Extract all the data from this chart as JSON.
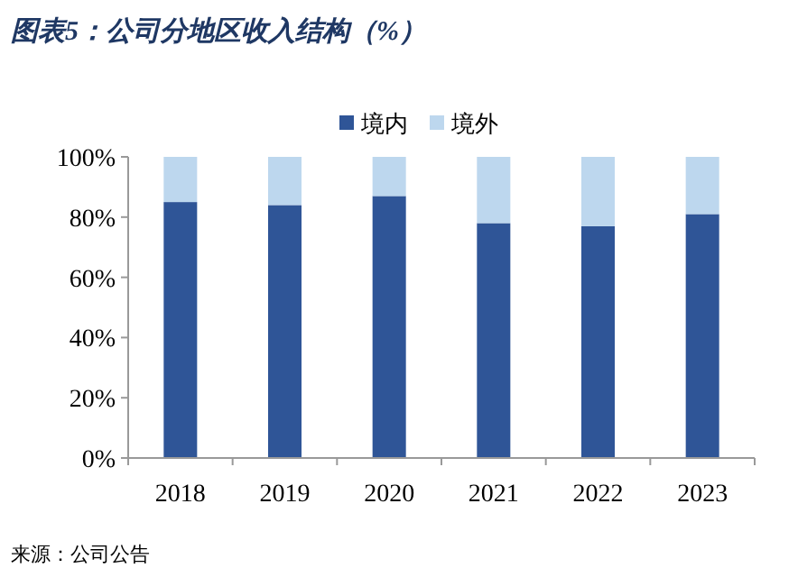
{
  "chart_data": {
    "type": "bar",
    "title": "图表5：公司分地区收入结构（%）",
    "categories": [
      "2018",
      "2019",
      "2020",
      "2021",
      "2022",
      "2023"
    ],
    "stacked": true,
    "series": [
      {
        "name": "境内",
        "color": "#2f5597",
        "values": [
          85,
          84,
          87,
          78,
          77,
          81
        ]
      },
      {
        "name": "境外",
        "color": "#bdd7ee",
        "values": [
          15,
          16,
          13,
          22,
          23,
          19
        ]
      }
    ],
    "ylim": [
      0,
      100
    ],
    "yticks": [
      {
        "value": 0,
        "label": "0%"
      },
      {
        "value": 20,
        "label": "20%"
      },
      {
        "value": 40,
        "label": "40%"
      },
      {
        "value": 60,
        "label": "60%"
      },
      {
        "value": 80,
        "label": "80%"
      },
      {
        "value": 100,
        "label": "100%"
      }
    ],
    "legend": "top",
    "grid": false,
    "annotations": [
      "来源：公司公告"
    ]
  }
}
